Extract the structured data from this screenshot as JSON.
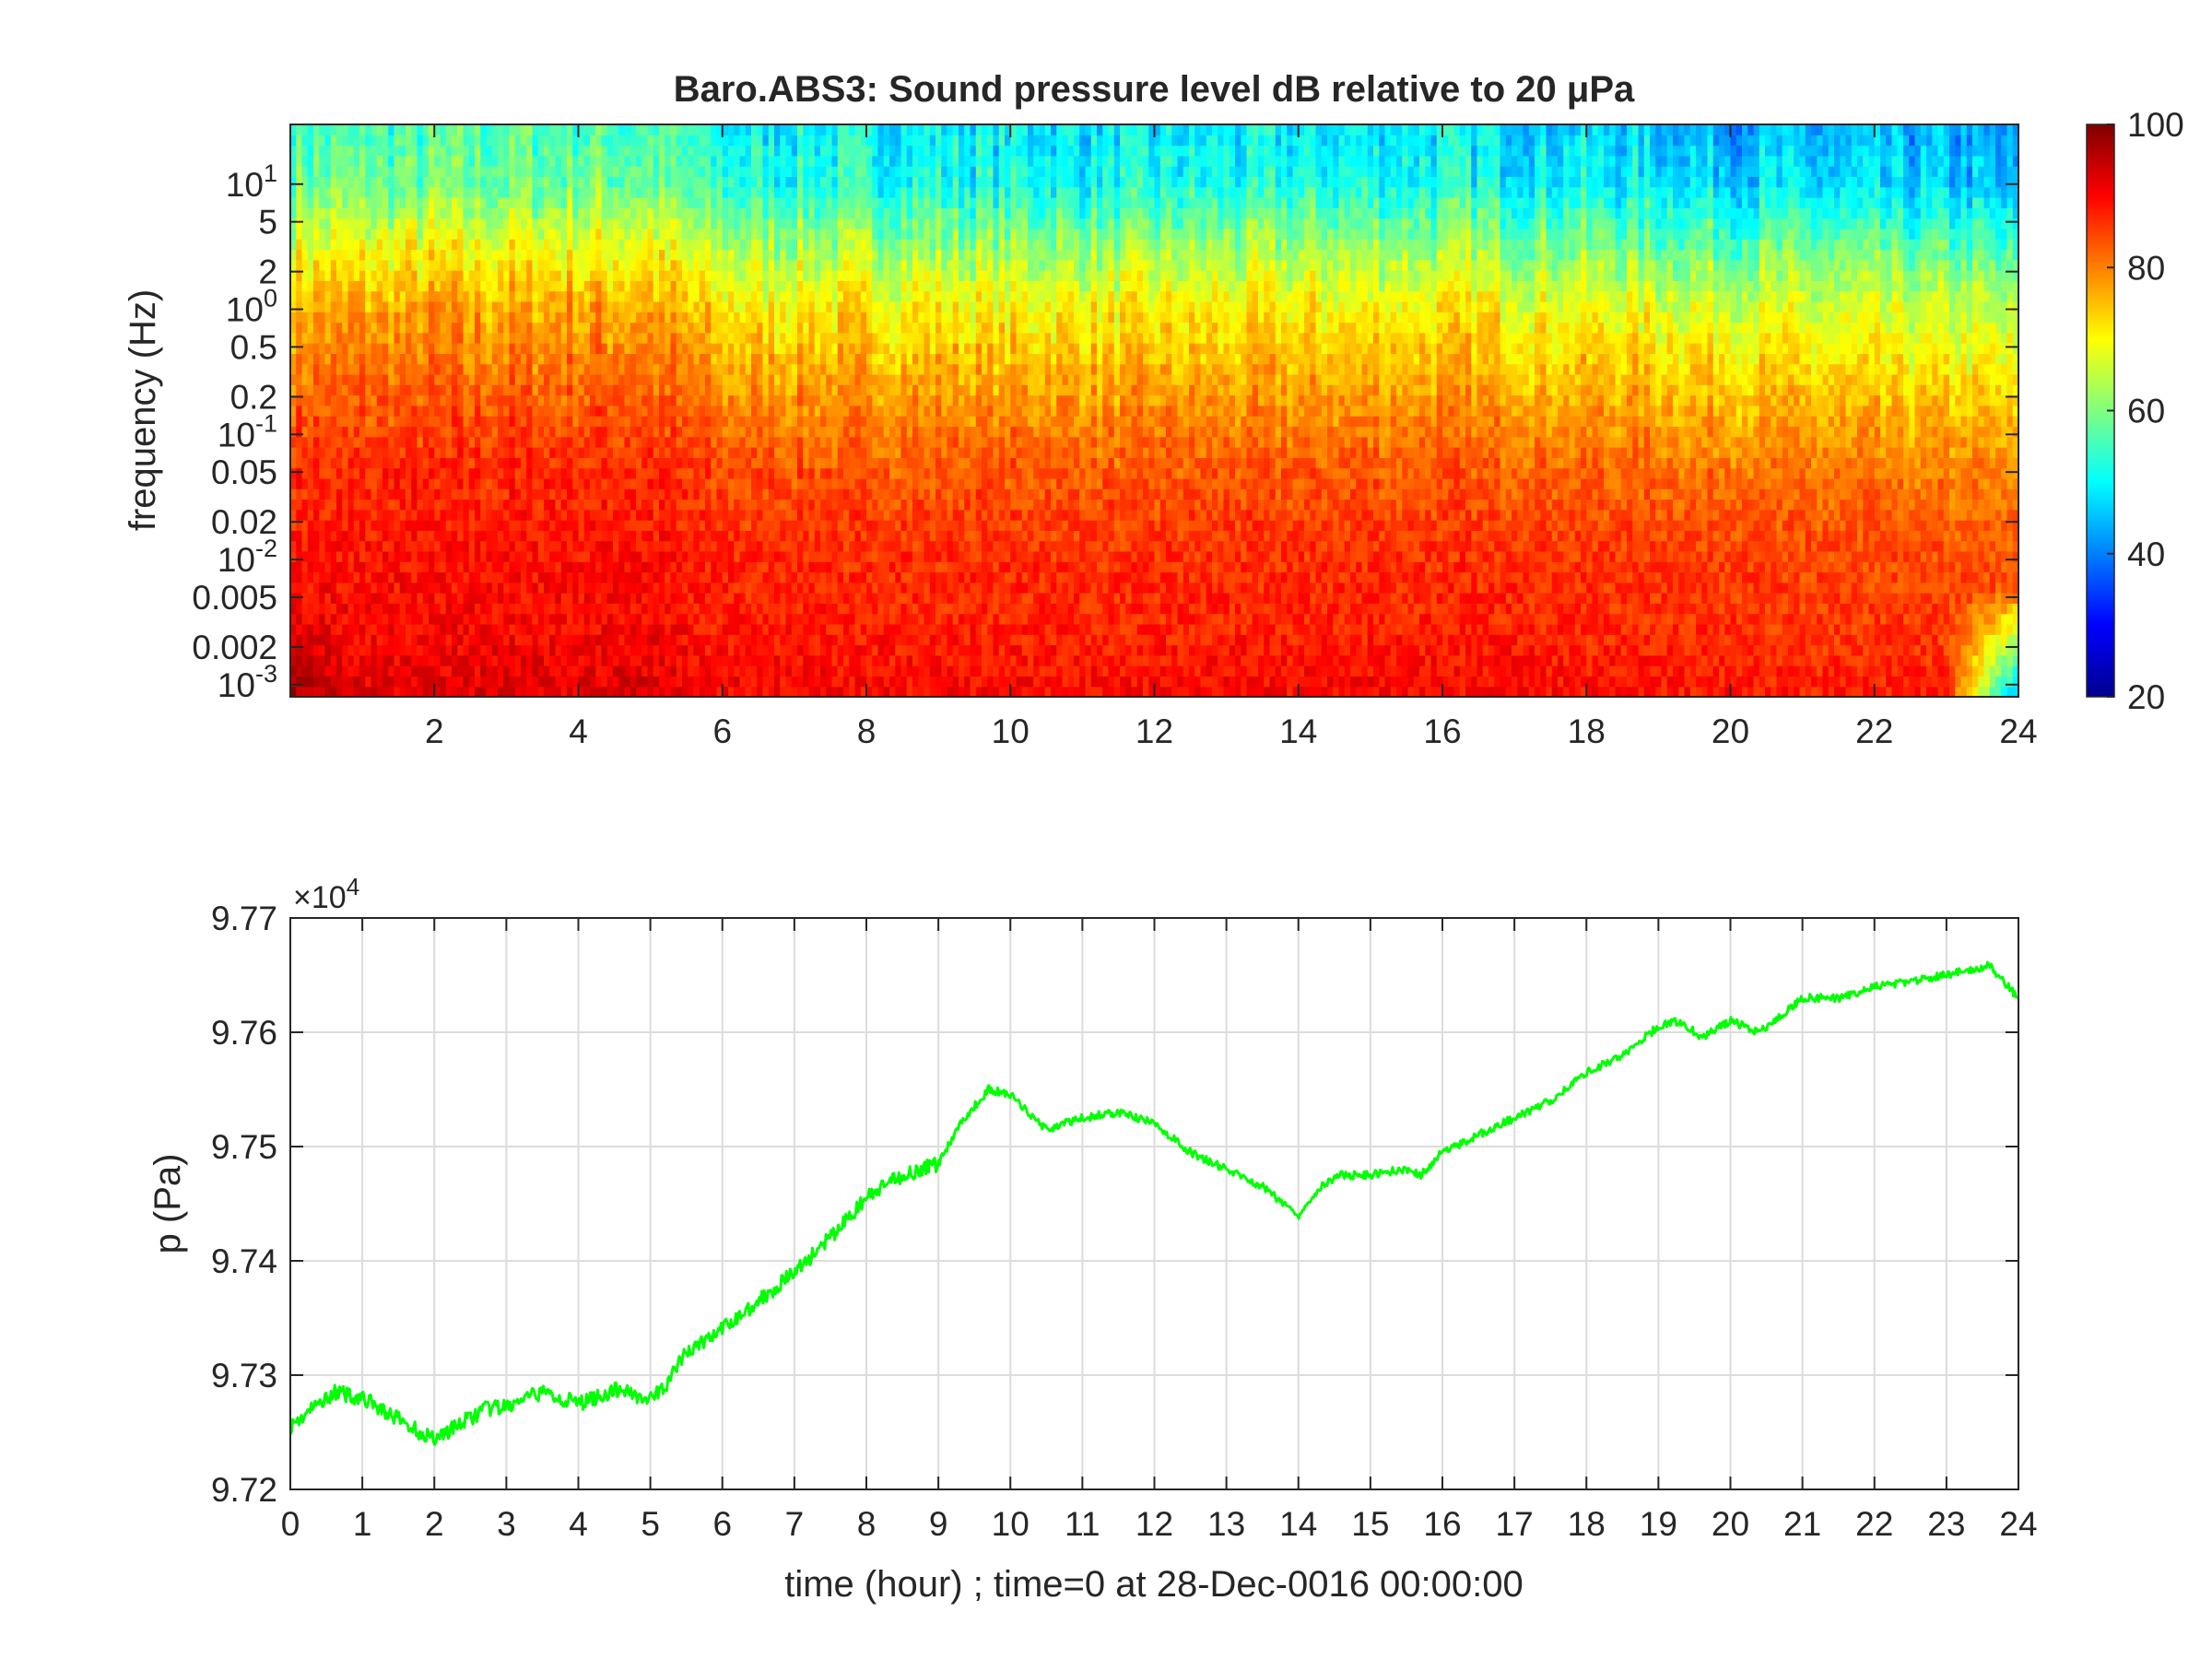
{
  "chart_data": [
    {
      "type": "heatmap",
      "title": "Baro.ABS3: Sound pressure level dB relative to 20 μPa",
      "xlabel": "",
      "ylabel": "frequency (Hz)",
      "xlim": [
        0,
        24
      ],
      "x_ticks": [
        2,
        4,
        6,
        8,
        10,
        12,
        14,
        16,
        18,
        20,
        22,
        24
      ],
      "y_scale": "log",
      "ylim": [
        0.0008,
        30
      ],
      "y_ticks": [
        {
          "value": 0.001,
          "base": "10",
          "exp": "-3"
        },
        {
          "value": 0.002,
          "label": "0.002"
        },
        {
          "value": 0.005,
          "label": "0.005"
        },
        {
          "value": 0.01,
          "base": "10",
          "exp": "-2"
        },
        {
          "value": 0.02,
          "label": "0.02"
        },
        {
          "value": 0.05,
          "label": "0.05"
        },
        {
          "value": 0.1,
          "base": "10",
          "exp": "-1"
        },
        {
          "value": 0.2,
          "label": "0.2"
        },
        {
          "value": 0.5,
          "label": "0.5"
        },
        {
          "value": 1,
          "base": "10",
          "exp": "0"
        },
        {
          "value": 2,
          "label": "2"
        },
        {
          "value": 5,
          "label": "5"
        },
        {
          "value": 10,
          "base": "10",
          "exp": "1"
        }
      ],
      "colormap": "jet",
      "colorbar": {
        "min": 20,
        "max": 100,
        "ticks": [
          20,
          40,
          60,
          80,
          100
        ]
      },
      "grid": false,
      "description_levels": {
        "frequency_profile_db": [
          [
            0.001,
            90
          ],
          [
            0.003,
            88
          ],
          [
            0.01,
            87
          ],
          [
            0.05,
            84
          ],
          [
            0.2,
            79
          ],
          [
            1,
            72
          ],
          [
            3,
            64
          ],
          [
            10,
            53
          ],
          [
            30,
            50
          ]
        ],
        "activity_by_hour_db_offset": [
          [
            0,
            5
          ],
          [
            5,
            6
          ],
          [
            6,
            0
          ],
          [
            11.5,
            -2
          ],
          [
            16,
            -1
          ],
          [
            20.8,
            -6
          ],
          [
            23.5,
            -8
          ],
          [
            24,
            -10
          ]
        ]
      }
    },
    {
      "type": "line",
      "title": "",
      "xlabel": "time (hour) ; time=0 at 28-Dec-0016 00:00:00",
      "ylabel": "p (Pa)",
      "xlim": [
        0,
        24
      ],
      "ylim": [
        97200,
        97700
      ],
      "x_ticks": [
        0,
        1,
        2,
        3,
        4,
        5,
        6,
        7,
        8,
        9,
        10,
        11,
        12,
        13,
        14,
        15,
        16,
        17,
        18,
        19,
        20,
        21,
        22,
        23,
        24
      ],
      "y_ticks": [
        97200,
        97300,
        97400,
        97500,
        97600,
        97700
      ],
      "y_tick_labels": [
        "9.72",
        "9.73",
        "9.74",
        "9.75",
        "9.76",
        "9.77"
      ],
      "y_multiplier_base": "×10",
      "y_multiplier_exp": "4",
      "grid": true,
      "series": [
        {
          "color": "#00ff00",
          "x": [
            0,
            0.3,
            0.6,
            1.0,
            1.4,
            1.8,
            2.0,
            2.3,
            2.7,
            3.0,
            3.5,
            4.0,
            4.3,
            4.6,
            5.0,
            5.2,
            5.5,
            6.0,
            6.5,
            7.0,
            7.5,
            8.0,
            8.5,
            9.0,
            9.3,
            9.7,
            10.0,
            10.5,
            11.0,
            11.5,
            12.0,
            12.5,
            13.0,
            13.5,
            14.0,
            14.3,
            14.6,
            15.0,
            15.4,
            15.7,
            16.0,
            16.5,
            17.0,
            17.5,
            18.0,
            18.5,
            19.0,
            19.3,
            19.6,
            20.0,
            20.4,
            20.7,
            21.0,
            21.5,
            22.0,
            22.5,
            23.0,
            23.3,
            23.6,
            24.0
          ],
          "y": [
            97255,
            97270,
            97285,
            97280,
            97265,
            97250,
            97245,
            97255,
            97270,
            97272,
            97285,
            97275,
            97282,
            97288,
            97278,
            97290,
            97320,
            97340,
            97365,
            97390,
            97420,
            97455,
            97475,
            97485,
            97520,
            97550,
            97545,
            97515,
            97525,
            97530,
            97520,
            97495,
            97480,
            97465,
            97440,
            97465,
            97475,
            97475,
            97480,
            97475,
            97495,
            97510,
            97525,
            97540,
            97565,
            97580,
            97605,
            97610,
            97595,
            97610,
            97600,
            97615,
            97630,
            97630,
            97640,
            97645,
            97650,
            97655,
            97658,
            97630
          ]
        }
      ]
    }
  ]
}
